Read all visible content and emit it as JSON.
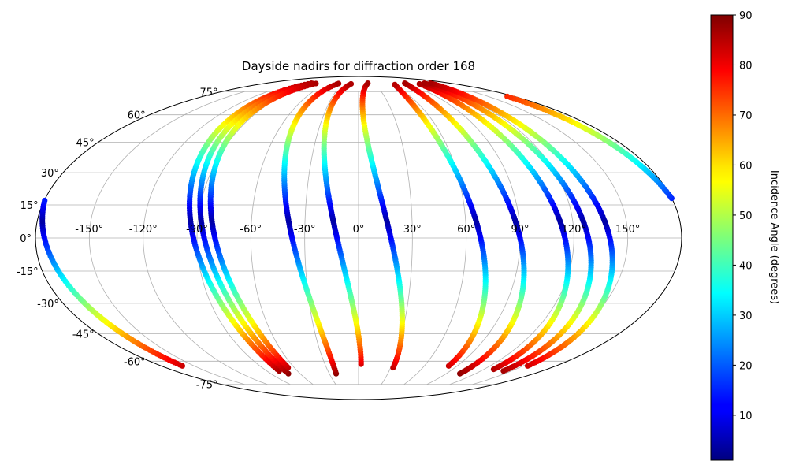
{
  "chart_data": {
    "type": "scatter",
    "projection": "mollweide",
    "title": "Dayside nadirs for diffraction order 168",
    "grid": true,
    "x_axis": {
      "label": "",
      "ticks": [
        -150,
        -120,
        -90,
        -60,
        -30,
        0,
        30,
        60,
        90,
        120,
        150
      ],
      "tick_labels": [
        "-150°",
        "-120°",
        "-90°",
        "-60°",
        "-30°",
        "0°",
        "30°",
        "60°",
        "90°",
        "120°",
        "150°"
      ],
      "range": [
        -180,
        180
      ]
    },
    "y_axis": {
      "label": "",
      "ticks": [
        -75,
        -60,
        -45,
        -30,
        -15,
        0,
        15,
        30,
        45,
        60,
        75
      ],
      "tick_labels": [
        "-75°",
        "-60°",
        "-45°",
        "-30°",
        "-15°",
        "0°",
        "15°",
        "30°",
        "45°",
        "60°",
        "75°"
      ],
      "range": [
        -90,
        90
      ]
    },
    "colorbar": {
      "label": "Incidence Angle (degrees)",
      "colormap": "jet",
      "range": [
        1,
        90
      ],
      "ticks": [
        10,
        20,
        30,
        40,
        50,
        60,
        70,
        80,
        90
      ],
      "tick_labels": [
        "10",
        "20",
        "30",
        "40",
        "50",
        "60",
        "70",
        "80",
        "90"
      ],
      "placement": "right"
    },
    "series": [
      {
        "lon_eq": -175,
        "lat_min": -63,
        "lat_max": 72
      },
      {
        "lon_eq": -92,
        "lat_min": -66,
        "lat_max": 82
      },
      {
        "lon_eq": -86,
        "lat_min": -68,
        "lat_max": 82
      },
      {
        "lon_eq": -80,
        "lat_min": -64,
        "lat_max": 82
      },
      {
        "lon_eq": -37,
        "lat_min": -68,
        "lat_max": 82
      },
      {
        "lon_eq": -12,
        "lat_min": -62,
        "lat_max": 82
      },
      {
        "lon_eq": 18,
        "lat_min": -64,
        "lat_max": 82
      },
      {
        "lon_eq": 68,
        "lat_min": -63,
        "lat_max": 82
      },
      {
        "lon_eq": 90,
        "lat_min": -68,
        "lat_max": 82
      },
      {
        "lon_eq": 115,
        "lat_min": -65,
        "lat_max": 82
      },
      {
        "lon_eq": 128,
        "lat_min": -66,
        "lat_max": 82
      },
      {
        "lon_eq": 140,
        "lat_min": -63,
        "lat_max": 82
      }
    ]
  }
}
